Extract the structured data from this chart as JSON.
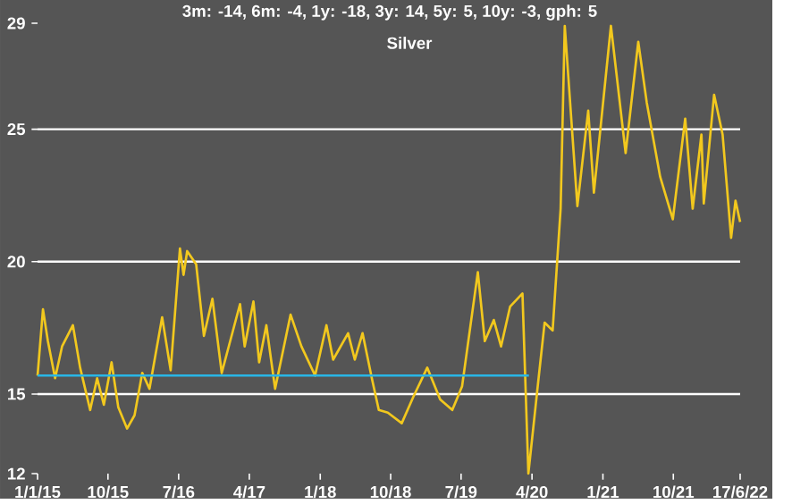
{
  "chart_data": {
    "type": "line",
    "title": "Silver",
    "subtitle": "3m: -14,   6m: -4,   1y: -18,   3y: 14,   5y: 5,   10y: -3,   gph: 5",
    "series": [
      {
        "color": "#f2c81e",
        "x": [
          "2015-01-01",
          "2015-01-22",
          "2015-02-10",
          "2015-03-10",
          "2015-04-06",
          "2015-05-18",
          "2015-06-15",
          "2015-07-24",
          "2015-08-20",
          "2015-09-15",
          "2015-10-15",
          "2015-11-10",
          "2015-12-14",
          "2016-01-12",
          "2016-02-11",
          "2016-03-10",
          "2016-04-28",
          "2016-05-31",
          "2016-07-06",
          "2016-07-20",
          "2016-08-03",
          "2016-09-07",
          "2016-10-07",
          "2016-11-09",
          "2016-12-15",
          "2017-02-24",
          "2017-03-14",
          "2017-04-17",
          "2017-05-09",
          "2017-06-06",
          "2017-07-10",
          "2017-09-08",
          "2017-10-20",
          "2017-12-12",
          "2018-01-25",
          "2018-02-20",
          "2018-04-19",
          "2018-05-15",
          "2018-06-14",
          "2018-07-20",
          "2018-08-16",
          "2018-09-20",
          "2018-11-13",
          "2018-12-28",
          "2019-02-20",
          "2019-04-11",
          "2019-05-28",
          "2019-07-05",
          "2019-09-04",
          "2019-10-01",
          "2019-11-05",
          "2019-12-03",
          "2020-01-07",
          "2020-02-24",
          "2020-03-18",
          "2020-04-21",
          "2020-05-20",
          "2020-06-20",
          "2020-07-21",
          "2020-08-06",
          "2020-09-24",
          "2020-11-05",
          "2020-11-27",
          "2021-02-01",
          "2021-03-30",
          "2021-05-18",
          "2021-06-20",
          "2021-08-11",
          "2021-09-29",
          "2021-11-16",
          "2021-12-15",
          "2022-01-18",
          "2022-01-27",
          "2022-03-08",
          "2022-04-10",
          "2022-05-13",
          "2022-05-30",
          "2022-06-17"
        ],
        "values": [
          15.7,
          18.2,
          17.0,
          15.6,
          16.8,
          17.6,
          16.0,
          14.4,
          15.6,
          14.6,
          16.2,
          14.5,
          13.7,
          14.2,
          15.8,
          15.2,
          17.9,
          15.9,
          20.5,
          19.5,
          20.4,
          19.9,
          17.2,
          18.6,
          15.8,
          18.4,
          16.8,
          18.5,
          16.2,
          17.6,
          15.2,
          18.0,
          16.8,
          15.7,
          17.6,
          16.3,
          17.3,
          16.3,
          17.3,
          15.6,
          14.4,
          14.3,
          13.9,
          14.9,
          16.0,
          14.8,
          14.4,
          15.3,
          19.6,
          17.0,
          17.8,
          16.8,
          18.3,
          18.8,
          12.0,
          15.1,
          17.7,
          17.4,
          22.0,
          28.9,
          22.1,
          25.7,
          22.6,
          28.9,
          24.1,
          28.3,
          26.0,
          23.2,
          21.6,
          25.4,
          22.0,
          24.8,
          22.2,
          26.3,
          24.8,
          20.9,
          22.3,
          21.5
        ]
      },
      {
        "type": "line",
        "color": "#29b6e6",
        "x": [
          "2015-01-01",
          "2020-03-20"
        ],
        "values": [
          15.7,
          15.7
        ]
      }
    ],
    "xlim": [
      "2015-01-01",
      "2022-06-17"
    ],
    "xticks": [
      {
        "value": "2015-01-01",
        "label": "1/1/15"
      },
      {
        "value": "2015-10-01",
        "label": "10/15"
      },
      {
        "value": "2016-07-01",
        "label": "7/16"
      },
      {
        "value": "2017-04-01",
        "label": "4/17"
      },
      {
        "value": "2018-01-01",
        "label": "1/18"
      },
      {
        "value": "2018-10-01",
        "label": "10/18"
      },
      {
        "value": "2019-07-01",
        "label": "7/19"
      },
      {
        "value": "2020-04-01",
        "label": "4/20"
      },
      {
        "value": "2021-01-01",
        "label": "1/21"
      },
      {
        "value": "2021-10-01",
        "label": "10/21"
      },
      {
        "value": "2022-06-17",
        "label": "17/6/22"
      }
    ],
    "ylim": [
      12,
      29
    ],
    "yticks": [
      12,
      15,
      20,
      25,
      29
    ],
    "grid": "y"
  }
}
